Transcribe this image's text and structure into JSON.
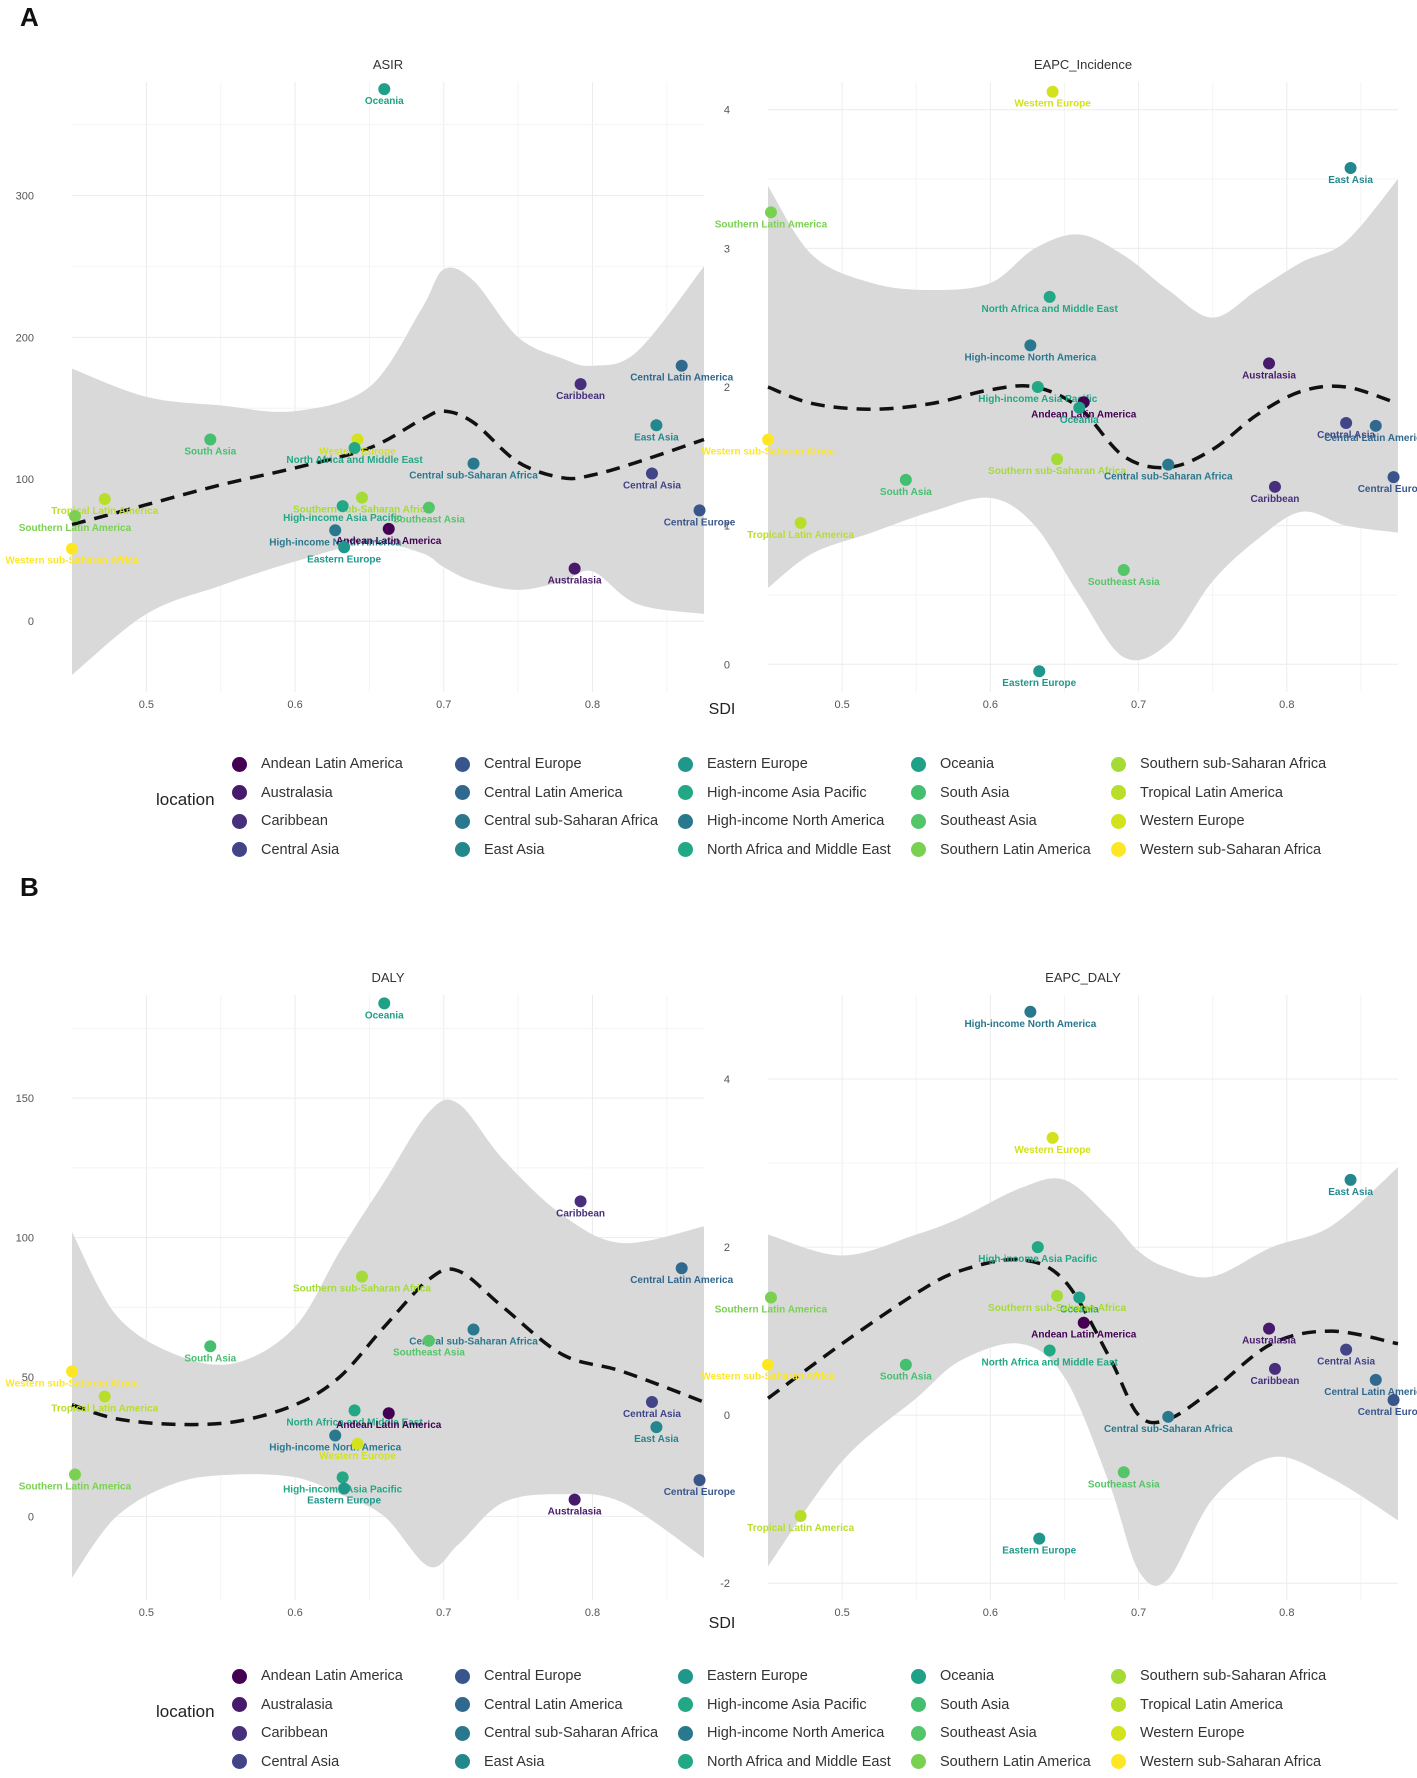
{
  "panels": [
    {
      "letter": "A"
    },
    {
      "letter": "B"
    }
  ],
  "colors": {
    "band": "#d9d9d9",
    "smooth_line": "#111111",
    "grid": "#ececec",
    "locations": {
      "Andean Latin America": "#440154",
      "Australasia": "#481a6c",
      "Caribbean": "#472f7d",
      "Central Asia": "#414487",
      "Central Europe": "#39568c",
      "Central Latin America": "#31688e",
      "Central sub-Saharan Africa": "#2a788e",
      "East Asia": "#23888e",
      "Eastern Europe": "#1f988b",
      "High-income Asia Pacific": "#22a884",
      "High-income North America": "#2a788e",
      "North Africa and Middle East": "#22a884",
      "Oceania": "#1fa187",
      "South Asia": "#44bf70",
      "Southeast Asia": "#54c568",
      "Southern Latin America": "#7ad151",
      "Southern sub-Saharan Africa": "#a5db36",
      "Tropical Latin America": "#b8de29",
      "Western Europe": "#d2e21b",
      "Western sub-Saharan Africa": "#fde725"
    }
  },
  "legends": [
    {
      "title": "location",
      "items": [
        "Andean Latin America",
        "Australasia",
        "Caribbean",
        "Central Asia",
        "Central Europe",
        "Central Latin America",
        "Central sub-Saharan Africa",
        "East Asia",
        "Eastern Europe",
        "High-income Asia Pacific",
        "High-income North America",
        "North Africa and Middle East",
        "Oceania",
        "South Asia",
        "Southeast Asia",
        "Southern Latin America",
        "Southern sub-Saharan Africa",
        "Tropical Latin America",
        "Western Europe",
        "Western sub-Saharan Africa"
      ]
    },
    {
      "title": "location",
      "items": [
        "Andean Latin America",
        "Australasia",
        "Caribbean",
        "Central Asia",
        "Central Europe",
        "Central Latin America",
        "Central sub-Saharan Africa",
        "East Asia",
        "Eastern Europe",
        "High-income Asia Pacific",
        "High-income North America",
        "North Africa and Middle East",
        "Oceania",
        "South Asia",
        "Southeast Asia",
        "Southern Latin America",
        "Southern sub-Saharan Africa",
        "Tropical Latin America",
        "Western Europe",
        "Western sub-Saharan Africa"
      ]
    }
  ],
  "chart_data": [
    {
      "type": "scatter",
      "title": "ASIR",
      "xlabel": "SDI",
      "ylabel": "",
      "xlim": [
        0.45,
        0.875
      ],
      "ylim": [
        -50,
        380
      ],
      "xticks": [
        0.5,
        0.6,
        0.7,
        0.8
      ],
      "yticks": [
        0,
        100,
        200,
        300
      ],
      "points": [
        {
          "location": "Oceania",
          "x": 0.66,
          "y": 375
        },
        {
          "location": "Central Latin America",
          "x": 0.86,
          "y": 180
        },
        {
          "location": "Caribbean",
          "x": 0.792,
          "y": 167
        },
        {
          "location": "South Asia",
          "x": 0.543,
          "y": 128
        },
        {
          "location": "Western Europe",
          "x": 0.642,
          "y": 128
        },
        {
          "location": "North Africa and Middle East",
          "x": 0.64,
          "y": 122
        },
        {
          "location": "East Asia",
          "x": 0.843,
          "y": 138
        },
        {
          "location": "Central sub-Saharan Africa",
          "x": 0.72,
          "y": 111
        },
        {
          "location": "Central Asia",
          "x": 0.84,
          "y": 104
        },
        {
          "location": "Tropical Latin America",
          "x": 0.472,
          "y": 86
        },
        {
          "location": "Southern sub-Saharan Africa",
          "x": 0.645,
          "y": 87
        },
        {
          "location": "High-income Asia Pacific",
          "x": 0.632,
          "y": 81
        },
        {
          "location": "Southeast Asia",
          "x": 0.69,
          "y": 80
        },
        {
          "location": "Central Europe",
          "x": 0.872,
          "y": 78
        },
        {
          "location": "Southern Latin America",
          "x": 0.452,
          "y": 74
        },
        {
          "location": "High-income North America",
          "x": 0.627,
          "y": 64
        },
        {
          "location": "Andean Latin America",
          "x": 0.663,
          "y": 65
        },
        {
          "location": "Eastern Europe",
          "x": 0.633,
          "y": 52
        },
        {
          "location": "Western sub-Saharan Africa",
          "x": 0.45,
          "y": 51
        },
        {
          "location": "Australasia",
          "x": 0.788,
          "y": 37
        }
      ],
      "smooth": {
        "x": [
          0.45,
          0.5,
          0.55,
          0.6,
          0.65,
          0.685,
          0.7,
          0.72,
          0.75,
          0.78,
          0.8,
          0.83,
          0.875
        ],
        "y": [
          68,
          82,
          96,
          108,
          122,
          142,
          148,
          140,
          112,
          101,
          103,
          112,
          128
        ],
        "lower": [
          -38,
          5,
          25,
          42,
          55,
          48,
          38,
          28,
          22,
          28,
          35,
          12,
          5
        ],
        "upper": [
          178,
          158,
          152,
          148,
          165,
          220,
          248,
          240,
          200,
          185,
          180,
          190,
          250
        ]
      }
    },
    {
      "type": "scatter",
      "title": "EAPC_Incidence",
      "xlabel": "SDI",
      "ylabel": "",
      "xlim": [
        0.45,
        0.875
      ],
      "ylim": [
        -0.2,
        4.2
      ],
      "xticks": [
        0.5,
        0.6,
        0.7,
        0.8
      ],
      "yticks": [
        0,
        1,
        2,
        3,
        4
      ],
      "points": [
        {
          "location": "Western Europe",
          "x": 0.642,
          "y": 4.13
        },
        {
          "location": "East Asia",
          "x": 0.843,
          "y": 3.58
        },
        {
          "location": "Southern Latin America",
          "x": 0.452,
          "y": 3.26
        },
        {
          "location": "North Africa and Middle East",
          "x": 0.64,
          "y": 2.65
        },
        {
          "location": "High-income North America",
          "x": 0.627,
          "y": 2.3
        },
        {
          "location": "Australasia",
          "x": 0.788,
          "y": 2.17
        },
        {
          "location": "High-income Asia Pacific",
          "x": 0.632,
          "y": 2.0
        },
        {
          "location": "Andean Latin America",
          "x": 0.663,
          "y": 1.89
        },
        {
          "location": "Oceania",
          "x": 0.66,
          "y": 1.85
        },
        {
          "location": "Central Asia",
          "x": 0.84,
          "y": 1.74
        },
        {
          "location": "Central Latin America",
          "x": 0.86,
          "y": 1.72
        },
        {
          "location": "Western sub-Saharan Africa",
          "x": 0.45,
          "y": 1.62
        },
        {
          "location": "Southern sub-Saharan Africa",
          "x": 0.645,
          "y": 1.48
        },
        {
          "location": "Central sub-Saharan Africa",
          "x": 0.72,
          "y": 1.44
        },
        {
          "location": "Central Europe",
          "x": 0.872,
          "y": 1.35
        },
        {
          "location": "South Asia",
          "x": 0.543,
          "y": 1.33
        },
        {
          "location": "Caribbean",
          "x": 0.792,
          "y": 1.28
        },
        {
          "location": "Tropical Latin America",
          "x": 0.472,
          "y": 1.02
        },
        {
          "location": "Southeast Asia",
          "x": 0.69,
          "y": 0.68
        },
        {
          "location": "Eastern Europe",
          "x": 0.633,
          "y": -0.05
        }
      ],
      "smooth": {
        "x": [
          0.45,
          0.48,
          0.52,
          0.56,
          0.6,
          0.63,
          0.66,
          0.69,
          0.72,
          0.75,
          0.78,
          0.81,
          0.84,
          0.875
        ],
        "y": [
          2.0,
          1.88,
          1.84,
          1.88,
          1.98,
          2.0,
          1.85,
          1.5,
          1.42,
          1.55,
          1.8,
          1.97,
          2.0,
          1.88
        ],
        "lower": [
          0.55,
          0.8,
          0.95,
          1.1,
          1.2,
          1.0,
          0.5,
          0.05,
          0.15,
          0.6,
          0.9,
          1.1,
          1.0,
          0.95
        ],
        "upper": [
          3.45,
          2.95,
          2.75,
          2.7,
          2.75,
          3.0,
          3.1,
          2.95,
          2.7,
          2.5,
          2.7,
          2.9,
          3.05,
          3.5
        ]
      }
    },
    {
      "type": "scatter",
      "title": "DALY",
      "xlabel": "SDI",
      "ylabel": "",
      "xlim": [
        0.45,
        0.875
      ],
      "ylim": [
        -30,
        187
      ],
      "xticks": [
        0.5,
        0.6,
        0.7,
        0.8
      ],
      "yticks": [
        0,
        50,
        100,
        150
      ],
      "points": [
        {
          "location": "Oceania",
          "x": 0.66,
          "y": 184
        },
        {
          "location": "Caribbean",
          "x": 0.792,
          "y": 113
        },
        {
          "location": "Central Latin America",
          "x": 0.86,
          "y": 89
        },
        {
          "location": "Southern sub-Saharan Africa",
          "x": 0.645,
          "y": 86
        },
        {
          "location": "Central sub-Saharan Africa",
          "x": 0.72,
          "y": 67
        },
        {
          "location": "Southeast Asia",
          "x": 0.69,
          "y": 63
        },
        {
          "location": "South Asia",
          "x": 0.543,
          "y": 61
        },
        {
          "location": "Western sub-Saharan Africa",
          "x": 0.45,
          "y": 52
        },
        {
          "location": "Tropical Latin America",
          "x": 0.472,
          "y": 43
        },
        {
          "location": "Central Asia",
          "x": 0.84,
          "y": 41
        },
        {
          "location": "North Africa and Middle East",
          "x": 0.64,
          "y": 38
        },
        {
          "location": "Andean Latin America",
          "x": 0.663,
          "y": 37
        },
        {
          "location": "East Asia",
          "x": 0.843,
          "y": 32
        },
        {
          "location": "High-income North America",
          "x": 0.627,
          "y": 29
        },
        {
          "location": "Western Europe",
          "x": 0.642,
          "y": 26
        },
        {
          "location": "Southern Latin America",
          "x": 0.452,
          "y": 15
        },
        {
          "location": "High-income Asia Pacific",
          "x": 0.632,
          "y": 14
        },
        {
          "location": "Central Europe",
          "x": 0.872,
          "y": 13
        },
        {
          "location": "Eastern Europe",
          "x": 0.633,
          "y": 10
        },
        {
          "location": "Australasia",
          "x": 0.788,
          "y": 6
        }
      ],
      "smooth": {
        "x": [
          0.45,
          0.48,
          0.52,
          0.56,
          0.6,
          0.63,
          0.66,
          0.69,
          0.71,
          0.74,
          0.78,
          0.82,
          0.875
        ],
        "y": [
          40,
          35,
          33,
          34,
          40,
          50,
          68,
          85,
          88,
          75,
          58,
          52,
          41
        ],
        "lower": [
          -22,
          0,
          12,
          15,
          14,
          8,
          0,
          -18,
          -10,
          5,
          8,
          5,
          -15
        ],
        "upper": [
          102,
          72,
          58,
          55,
          68,
          95,
          120,
          145,
          148,
          128,
          108,
          98,
          104
        ]
      }
    },
    {
      "type": "scatter",
      "title": "EAPC_DALY",
      "xlabel": "SDI",
      "ylabel": "",
      "xlim": [
        0.45,
        0.875
      ],
      "ylim": [
        -2.2,
        5.0
      ],
      "xticks": [
        0.5,
        0.6,
        0.7,
        0.8
      ],
      "yticks": [
        -2,
        0,
        2,
        4
      ],
      "points": [
        {
          "location": "High-income North America",
          "x": 0.627,
          "y": 4.8
        },
        {
          "location": "Western Europe",
          "x": 0.642,
          "y": 3.3
        },
        {
          "location": "East Asia",
          "x": 0.843,
          "y": 2.8
        },
        {
          "location": "High-income Asia Pacific",
          "x": 0.632,
          "y": 2.0
        },
        {
          "location": "Oceania",
          "x": 0.66,
          "y": 1.4
        },
        {
          "location": "Southern sub-Saharan Africa",
          "x": 0.645,
          "y": 1.42
        },
        {
          "location": "Southern Latin America",
          "x": 0.452,
          "y": 1.4
        },
        {
          "location": "Andean Latin America",
          "x": 0.663,
          "y": 1.1
        },
        {
          "location": "Australasia",
          "x": 0.788,
          "y": 1.03
        },
        {
          "location": "Central Asia",
          "x": 0.84,
          "y": 0.78
        },
        {
          "location": "North Africa and Middle East",
          "x": 0.64,
          "y": 0.77
        },
        {
          "location": "South Asia",
          "x": 0.543,
          "y": 0.6
        },
        {
          "location": "Western sub-Saharan Africa",
          "x": 0.45,
          "y": 0.6
        },
        {
          "location": "Caribbean",
          "x": 0.792,
          "y": 0.55
        },
        {
          "location": "Central Latin America",
          "x": 0.86,
          "y": 0.42
        },
        {
          "location": "Central Europe",
          "x": 0.872,
          "y": 0.18
        },
        {
          "location": "Central sub-Saharan Africa",
          "x": 0.72,
          "y": -0.02
        },
        {
          "location": "Southeast Asia",
          "x": 0.69,
          "y": -0.68
        },
        {
          "location": "Tropical Latin America",
          "x": 0.472,
          "y": -1.2
        },
        {
          "location": "Eastern Europe",
          "x": 0.633,
          "y": -1.47
        }
      ],
      "smooth": {
        "x": [
          0.45,
          0.5,
          0.55,
          0.58,
          0.62,
          0.65,
          0.68,
          0.7,
          0.72,
          0.75,
          0.79,
          0.83,
          0.875
        ],
        "y": [
          0.2,
          0.85,
          1.45,
          1.72,
          1.85,
          1.6,
          0.7,
          0.0,
          -0.05,
          0.3,
          0.85,
          1.0,
          0.85
        ],
        "lower": [
          -1.8,
          -0.55,
          0.2,
          0.65,
          0.85,
          0.45,
          -0.8,
          -1.85,
          -1.95,
          -1.0,
          -0.5,
          -0.75,
          -1.25
        ],
        "upper": [
          2.15,
          1.9,
          2.15,
          2.35,
          2.7,
          2.8,
          2.35,
          1.95,
          1.75,
          1.65,
          2.0,
          2.25,
          2.95
        ]
      }
    }
  ]
}
